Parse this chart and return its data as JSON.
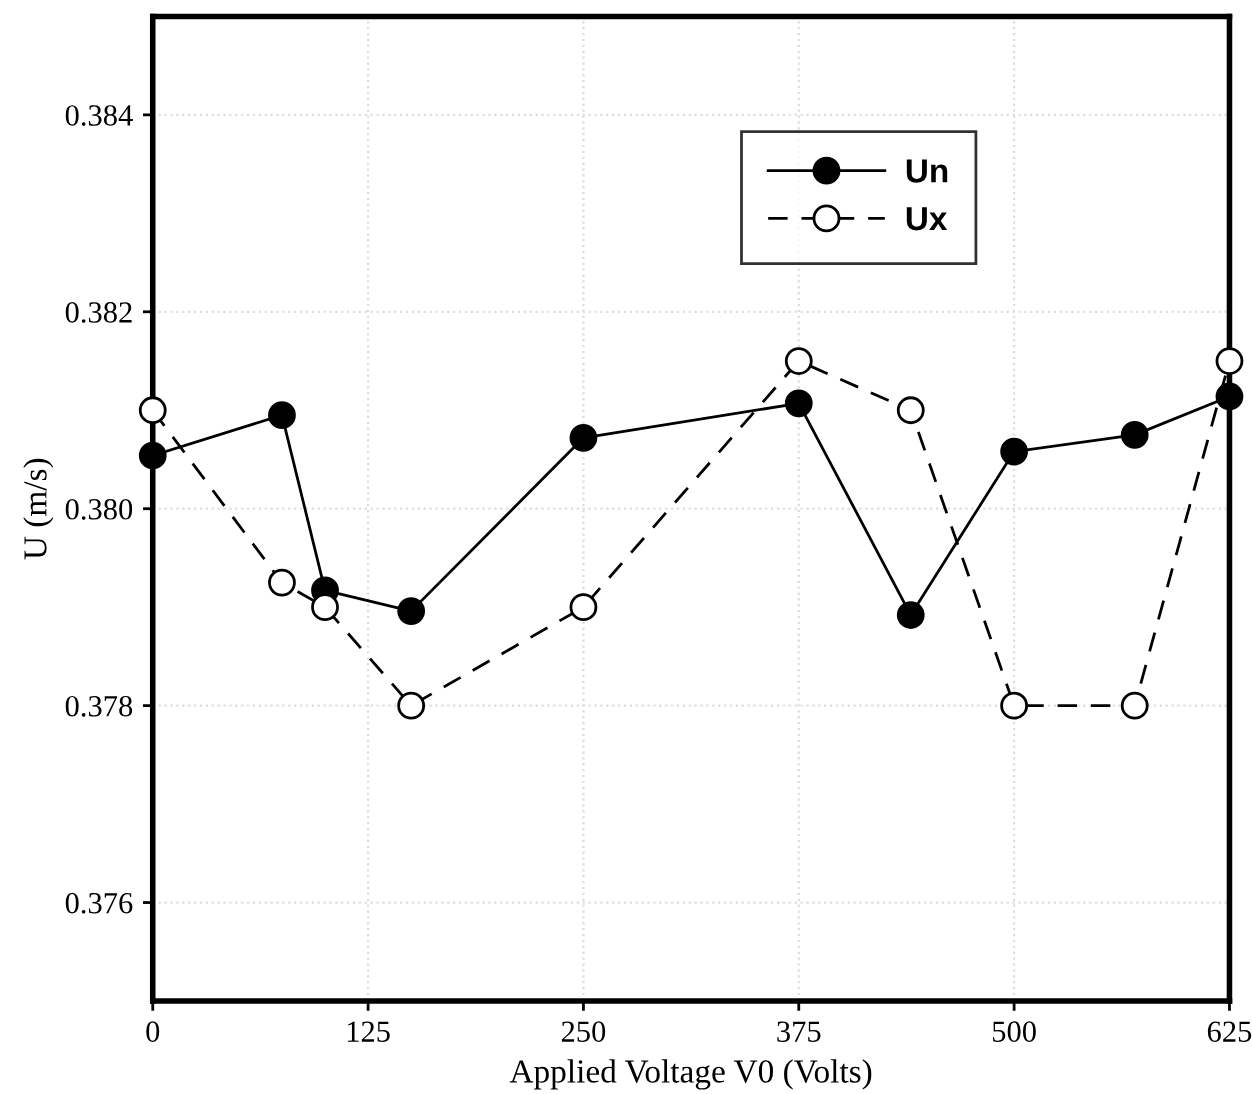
{
  "chart_data": {
    "type": "line",
    "xlabel": "Applied Voltage V0 (Volts)",
    "ylabel": "U (m/s)",
    "xlim": [
      0,
      625
    ],
    "xticks": [
      0,
      125,
      250,
      375,
      500,
      625
    ],
    "ylim": [
      0.375,
      0.385
    ],
    "yticks": [
      0.376,
      0.378,
      {
        "value": 0.38,
        "label": "0.380"
      },
      0.382,
      0.384
    ],
    "grid": true,
    "legend": "top right",
    "series": [
      {
        "name": "Un",
        "color": "#000000",
        "x": [
          0,
          75,
          100,
          150,
          250,
          375,
          440,
          500,
          570,
          625
        ],
        "values": [
          0.38054,
          0.38095,
          0.37917,
          0.37896,
          0.38072,
          0.38107,
          0.37892,
          0.38058,
          0.38075,
          0.38114
        ],
        "marker": "circle",
        "line_style": "solid"
      },
      {
        "name": "Ux",
        "color": "#000000",
        "x": [
          0,
          75,
          100,
          150,
          250,
          375,
          440,
          500,
          570,
          625
        ],
        "values": [
          0.381,
          0.37925,
          0.379,
          0.378,
          0.379,
          0.3815,
          0.381,
          0.378,
          0.378,
          0.3815
        ],
        "marker": "circle",
        "line_style": "dashed"
      }
    ]
  }
}
